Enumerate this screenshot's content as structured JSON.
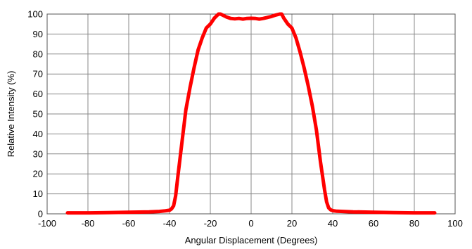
{
  "chart_data": {
    "type": "line",
    "title": "",
    "xlabel": "Angular Displacement (Degrees)",
    "ylabel": "Relative Intensity (%)",
    "xlim": [
      -100,
      100
    ],
    "ylim": [
      0,
      100
    ],
    "x_ticks": [
      -100,
      -80,
      -60,
      -40,
      -20,
      0,
      20,
      40,
      60,
      80,
      100
    ],
    "y_ticks": [
      0,
      10,
      20,
      30,
      40,
      50,
      60,
      70,
      80,
      90,
      100
    ],
    "x_tick_labels": [
      "-100",
      "-80",
      "-60",
      "-40",
      "-20",
      "0",
      "20",
      "40",
      "60",
      "80",
      "100"
    ],
    "y_tick_labels": [
      "0",
      "10",
      "20",
      "30",
      "40",
      "50",
      "60",
      "70",
      "80",
      "90",
      "100"
    ],
    "grid": true,
    "legend": "none",
    "series": [
      {
        "color": "#ff0000",
        "x": [
          -90,
          -80,
          -70,
          -60,
          -50,
          -45,
          -42,
          -40,
          -39,
          -38,
          -37,
          -36,
          -34,
          -32,
          -30,
          -28,
          -26,
          -24,
          -22,
          -20,
          -18,
          -16,
          -15,
          -14,
          -12,
          -10,
          -8,
          -6,
          -4,
          -2,
          0,
          2,
          4,
          6,
          8,
          10,
          12,
          14,
          15,
          16,
          18,
          20,
          22,
          24,
          26,
          28,
          30,
          32,
          34,
          36,
          37,
          38,
          39,
          40,
          42,
          45,
          50,
          60,
          70,
          80,
          90
        ],
        "y": [
          0.5,
          0.5,
          0.6,
          0.8,
          1.0,
          1.2,
          1.5,
          1.8,
          2.5,
          4,
          9,
          18,
          35,
          52,
          63,
          73,
          82,
          88,
          93,
          95,
          98,
          100,
          100,
          99.5,
          98.5,
          97.8,
          97.6,
          97.8,
          97.5,
          97.8,
          97.9,
          97.8,
          97.5,
          97.8,
          98.3,
          98.8,
          99.5,
          100,
          100,
          98,
          95,
          93,
          88,
          81,
          73,
          64,
          54,
          42,
          26,
          12,
          6,
          3,
          2,
          1.6,
          1.3,
          1.2,
          1.0,
          0.8,
          0.6,
          0.5,
          0.5
        ]
      }
    ]
  }
}
